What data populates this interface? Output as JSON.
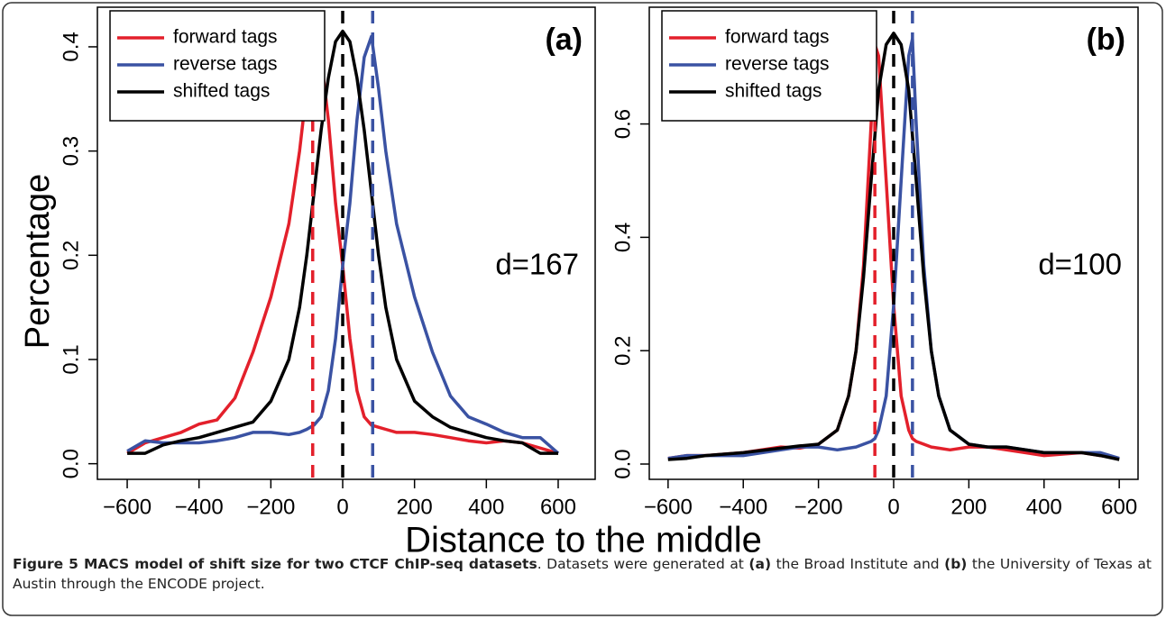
{
  "chart_data": [
    {
      "type": "line",
      "ylabel": "Percentage",
      "xlabel": "Distance to the middle",
      "panel_label": "(a)",
      "annotation": "d=167",
      "xlim": [
        -683,
        703
      ],
      "ylim": [
        -0.015,
        0.438
      ],
      "xticks": [
        {
          "value": -600,
          "label": "−600"
        },
        {
          "value": -400,
          "label": "−400"
        },
        {
          "value": -200,
          "label": "−200"
        },
        0,
        200,
        400,
        600
      ],
      "yticks": [
        {
          "value": 0,
          "label": "0.0"
        },
        0.1,
        0.2,
        0.3,
        0.4
      ],
      "x": [
        -600,
        -550,
        -500,
        -450,
        -400,
        -350,
        -300,
        -250,
        -200,
        -150,
        -120,
        -100,
        -80,
        -60,
        -40,
        -20,
        0,
        20,
        40,
        60,
        80,
        100,
        120,
        150,
        200,
        250,
        300,
        350,
        400,
        450,
        500,
        550,
        600
      ],
      "series": [
        {
          "name": "forward tags",
          "color": "#e3202b",
          "values": [
            0.01,
            0.02,
            0.025,
            0.03,
            0.038,
            0.042,
            0.063,
            0.107,
            0.16,
            0.23,
            0.3,
            0.36,
            0.41,
            0.39,
            0.33,
            0.25,
            0.19,
            0.12,
            0.07,
            0.045,
            0.037,
            0.035,
            0.033,
            0.03,
            0.03,
            0.028,
            0.025,
            0.022,
            0.02,
            0.022,
            0.02,
            0.015,
            0.01
          ]
        },
        {
          "name": "reverse tags",
          "color": "#3a52a3",
          "values": [
            0.012,
            0.022,
            0.02,
            0.02,
            0.02,
            0.022,
            0.025,
            0.03,
            0.03,
            0.028,
            0.03,
            0.033,
            0.037,
            0.045,
            0.07,
            0.12,
            0.19,
            0.25,
            0.33,
            0.39,
            0.41,
            0.36,
            0.3,
            0.23,
            0.16,
            0.107,
            0.065,
            0.045,
            0.038,
            0.03,
            0.025,
            0.025,
            0.01
          ]
        },
        {
          "name": "shifted tags",
          "color": "#000000",
          "values": [
            0.01,
            0.01,
            0.018,
            0.022,
            0.025,
            0.03,
            0.035,
            0.04,
            0.06,
            0.1,
            0.15,
            0.2,
            0.26,
            0.32,
            0.37,
            0.405,
            0.415,
            0.405,
            0.37,
            0.32,
            0.26,
            0.2,
            0.15,
            0.1,
            0.06,
            0.045,
            0.035,
            0.03,
            0.025,
            0.022,
            0.02,
            0.01,
            0.01
          ]
        }
      ],
      "vlines": [
        {
          "x": -83.5,
          "color": "#e3202b"
        },
        {
          "x": 0,
          "color": "#000000"
        },
        {
          "x": 83.5,
          "color": "#3a52a3"
        }
      ]
    },
    {
      "type": "line",
      "panel_label": "(b)",
      "annotation": "d=100",
      "xlim": [
        -650,
        650
      ],
      "ylim": [
        -0.027,
        0.806
      ],
      "xticks": [
        {
          "value": -600,
          "label": "−600"
        },
        {
          "value": -400,
          "label": "−400"
        },
        {
          "value": -200,
          "label": "−200"
        },
        0,
        200,
        400,
        600
      ],
      "yticks": [
        {
          "value": 0,
          "label": "0.0"
        },
        0.2,
        0.4,
        0.6
      ],
      "x": [
        -600,
        -550,
        -500,
        -400,
        -300,
        -250,
        -200,
        -150,
        -120,
        -100,
        -80,
        -60,
        -50,
        -40,
        -20,
        0,
        20,
        40,
        50,
        60,
        80,
        100,
        120,
        150,
        200,
        250,
        300,
        400,
        500,
        550,
        600
      ],
      "series": [
        {
          "name": "forward tags",
          "color": "#e3202b",
          "values": [
            0.01,
            0.015,
            0.015,
            0.02,
            0.03,
            0.028,
            0.035,
            0.06,
            0.12,
            0.2,
            0.35,
            0.6,
            0.74,
            0.72,
            0.5,
            0.28,
            0.12,
            0.06,
            0.045,
            0.04,
            0.035,
            0.03,
            0.028,
            0.025,
            0.03,
            0.03,
            0.025,
            0.015,
            0.02,
            0.015,
            0.01
          ]
        },
        {
          "name": "reverse tags",
          "color": "#3a52a3",
          "values": [
            0.01,
            0.015,
            0.015,
            0.015,
            0.025,
            0.03,
            0.03,
            0.025,
            0.028,
            0.03,
            0.035,
            0.04,
            0.045,
            0.06,
            0.12,
            0.28,
            0.5,
            0.72,
            0.75,
            0.6,
            0.35,
            0.2,
            0.12,
            0.06,
            0.035,
            0.03,
            0.03,
            0.02,
            0.02,
            0.02,
            0.01
          ]
        },
        {
          "name": "shifted tags",
          "color": "#000000",
          "values": [
            0.008,
            0.01,
            0.015,
            0.02,
            0.028,
            0.032,
            0.035,
            0.06,
            0.12,
            0.2,
            0.33,
            0.5,
            0.58,
            0.66,
            0.74,
            0.76,
            0.74,
            0.66,
            0.58,
            0.5,
            0.33,
            0.2,
            0.12,
            0.06,
            0.035,
            0.03,
            0.03,
            0.02,
            0.02,
            0.015,
            0.008
          ]
        }
      ],
      "vlines": [
        {
          "x": -50,
          "color": "#e3202b"
        },
        {
          "x": 0,
          "color": "#000000"
        },
        {
          "x": 50,
          "color": "#3a52a3"
        }
      ]
    }
  ],
  "caption": [
    {
      "text": "Figure 5 MACS model of shift size for two CTCF ChIP-seq datasets",
      "bold": true
    },
    {
      "text": ". Datasets were generated at ",
      "bold": false
    },
    {
      "text": "(a)",
      "bold": true
    },
    {
      "text": " the Broad Institute and ",
      "bold": false
    },
    {
      "text": "(b)",
      "bold": true
    },
    {
      "text": " the University of Texas at Austin through the ENCODE project.",
      "bold": false
    }
  ]
}
